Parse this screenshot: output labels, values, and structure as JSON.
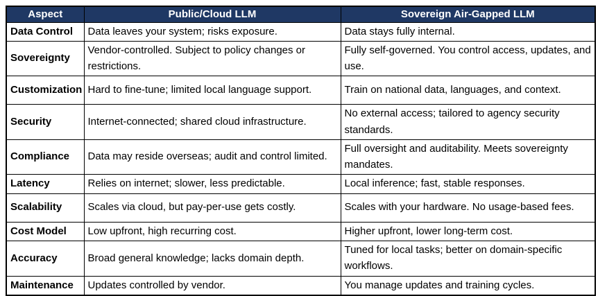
{
  "colors": {
    "header_bg": "#1f3864",
    "header_text": "#ffffff",
    "border": "#000000",
    "body_text": "#000000"
  },
  "table": {
    "columns": [
      "Aspect",
      "Public/Cloud LLM",
      "Sovereign Air-Gapped LLM"
    ],
    "rows": [
      {
        "aspect": "Data Control",
        "public": "Data leaves your system; risks exposure.",
        "sovereign": "Data stays fully internal."
      },
      {
        "aspect": "Sovereignty",
        "public": "Vendor-controlled. Subject to policy changes or restrictions.",
        "sovereign": "Fully self-governed. You control access, updates, and use."
      },
      {
        "aspect": "Customization",
        "public": "Hard to fine-tune; limited local language support.",
        "sovereign": "Train on national data, languages, and context."
      },
      {
        "aspect": "Security",
        "public": "Internet-connected; shared cloud infrastructure.",
        "sovereign": "No external access; tailored to agency security standards."
      },
      {
        "aspect": "Compliance",
        "public": "Data may reside overseas; audit and control limited.",
        "sovereign": "Full oversight and auditability. Meets sovereignty mandates."
      },
      {
        "aspect": "Latency",
        "public": "Relies on internet; slower, less predictable.",
        "sovereign": "Local inference; fast, stable responses."
      },
      {
        "aspect": "Scalability",
        "public": "Scales via cloud, but pay-per-use gets costly.",
        "sovereign": "Scales with your hardware. No usage-based fees."
      },
      {
        "aspect": "Cost Model",
        "public": "Low upfront, high recurring cost.",
        "sovereign": "Higher upfront, lower long-term cost."
      },
      {
        "aspect": "Accuracy",
        "public": "Broad general knowledge; lacks domain depth.",
        "sovereign": "Tuned for local tasks; better on domain-specific workflows."
      },
      {
        "aspect": "Maintenance",
        "public": "Updates controlled by vendor.",
        "sovereign": "You manage updates and training cycles."
      }
    ]
  }
}
